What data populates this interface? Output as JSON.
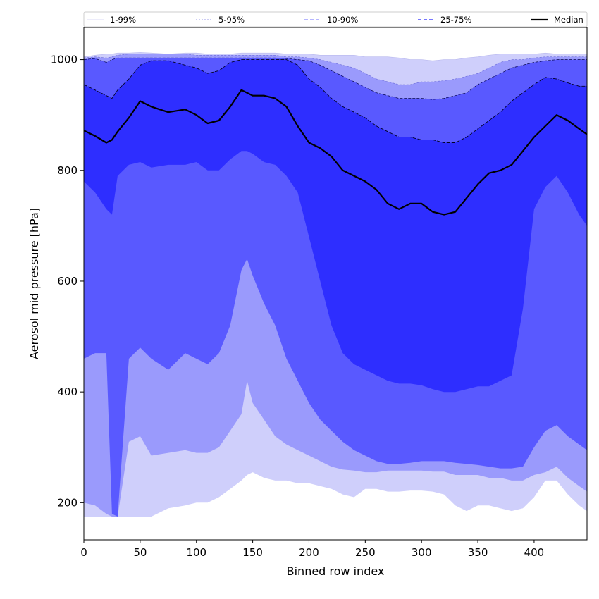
{
  "chart_data": {
    "type": "area",
    "xlabel": "Binned row index",
    "ylabel": "Aerosol mid pressure [hPa]",
    "xlim": [
      0,
      447
    ],
    "ylim": [
      133,
      1058
    ],
    "xticks": [
      0,
      50,
      100,
      150,
      200,
      250,
      300,
      350,
      400
    ],
    "yticks": [
      200,
      400,
      600,
      800,
      1000
    ],
    "legend_position": "top, spanning full width (above plot)",
    "grid": false,
    "colors": {
      "band_1_99": "#cfcffb",
      "band_5_95": "#9a9afc",
      "band_10_90": "#5959ff",
      "band_25_75": "#2e2eff",
      "median": "#000000"
    },
    "x": [
      0,
      10,
      20,
      25,
      30,
      40,
      50,
      60,
      75,
      90,
      100,
      110,
      120,
      130,
      140,
      145,
      150,
      160,
      170,
      180,
      190,
      200,
      210,
      220,
      230,
      240,
      250,
      260,
      270,
      280,
      290,
      300,
      310,
      320,
      330,
      340,
      350,
      360,
      370,
      380,
      390,
      400,
      410,
      420,
      430,
      440,
      447
    ],
    "series": [
      {
        "name": "1-99%",
        "lower": [
          175,
          175,
          175,
          175,
          175,
          175,
          175,
          175,
          190,
          195,
          200,
          200,
          210,
          225,
          240,
          250,
          255,
          245,
          240,
          240,
          235,
          235,
          230,
          225,
          215,
          210,
          225,
          225,
          220,
          220,
          222,
          222,
          220,
          215,
          195,
          185,
          195,
          195,
          190,
          185,
          190,
          210,
          240,
          240,
          215,
          195,
          185
        ],
        "upper": [
          1005,
          1008,
          1010,
          1010,
          1012,
          1012,
          1013,
          1012,
          1010,
          1012,
          1012,
          1010,
          1010,
          1010,
          1012,
          1012,
          1012,
          1012,
          1012,
          1010,
          1010,
          1010,
          1008,
          1008,
          1008,
          1008,
          1005,
          1005,
          1005,
          1003,
          1000,
          1000,
          998,
          1000,
          1000,
          1003,
          1005,
          1008,
          1010,
          1010,
          1010,
          1010,
          1012,
          1010,
          1010,
          1010,
          1010
        ]
      },
      {
        "name": "5-95%",
        "lower": [
          200,
          195,
          180,
          175,
          175,
          310,
          320,
          285,
          290,
          295,
          290,
          290,
          300,
          330,
          360,
          420,
          380,
          350,
          320,
          305,
          295,
          285,
          275,
          265,
          260,
          258,
          255,
          255,
          258,
          258,
          258,
          258,
          256,
          256,
          250,
          250,
          250,
          245,
          245,
          240,
          240,
          250,
          255,
          265,
          245,
          230,
          220
        ],
        "upper": [
          1003,
          1005,
          1003,
          1005,
          1008,
          1010,
          1010,
          1010,
          1010,
          1010,
          1008,
          1008,
          1008,
          1008,
          1008,
          1008,
          1008,
          1008,
          1008,
          1005,
          1005,
          1003,
          1000,
          995,
          990,
          985,
          975,
          965,
          960,
          955,
          955,
          960,
          960,
          962,
          965,
          970,
          975,
          985,
          995,
          1000,
          1000,
          1003,
          1005,
          1005,
          1005,
          1005,
          1005
        ]
      },
      {
        "name": "10-90%",
        "lower": [
          460,
          470,
          470,
          180,
          175,
          460,
          480,
          460,
          440,
          470,
          460,
          450,
          470,
          520,
          620,
          640,
          610,
          560,
          520,
          460,
          420,
          380,
          350,
          330,
          310,
          295,
          285,
          275,
          270,
          270,
          272,
          275,
          275,
          275,
          272,
          270,
          268,
          265,
          262,
          262,
          265,
          300,
          330,
          340,
          320,
          305,
          295
        ],
        "upper": [
          1000,
          1002,
          995,
          1000,
          1003,
          1003,
          1003,
          1003,
          1003,
          1003,
          1003,
          1003,
          1003,
          1003,
          1003,
          1003,
          1003,
          1003,
          1003,
          1002,
          1000,
          998,
          990,
          980,
          970,
          960,
          950,
          940,
          935,
          930,
          930,
          930,
          928,
          930,
          935,
          940,
          955,
          965,
          975,
          985,
          990,
          995,
          998,
          1000,
          1000,
          1000,
          1000
        ]
      },
      {
        "name": "25-75%",
        "lower": [
          780,
          760,
          730,
          720,
          790,
          810,
          815,
          805,
          810,
          810,
          815,
          800,
          800,
          820,
          835,
          835,
          830,
          815,
          810,
          790,
          760,
          680,
          600,
          520,
          470,
          450,
          440,
          430,
          420,
          415,
          415,
          412,
          405,
          400,
          400,
          405,
          410,
          410,
          420,
          430,
          550,
          730,
          770,
          790,
          760,
          720,
          700
        ],
        "upper": [
          955,
          945,
          935,
          930,
          945,
          965,
          990,
          998,
          998,
          990,
          985,
          975,
          980,
          995,
          1000,
          1000,
          1000,
          1000,
          1000,
          1000,
          990,
          965,
          950,
          930,
          915,
          905,
          895,
          880,
          870,
          860,
          860,
          855,
          855,
          850,
          850,
          860,
          875,
          890,
          905,
          925,
          940,
          955,
          968,
          965,
          958,
          952,
          952
        ]
      },
      {
        "name": "Median",
        "values": [
          872,
          862,
          850,
          855,
          870,
          895,
          925,
          915,
          905,
          910,
          900,
          885,
          890,
          915,
          945,
          940,
          935,
          935,
          930,
          915,
          880,
          850,
          840,
          825,
          800,
          790,
          780,
          765,
          740,
          730,
          740,
          740,
          725,
          720,
          725,
          750,
          775,
          795,
          800,
          810,
          835,
          860,
          880,
          900,
          890,
          875,
          865
        ]
      }
    ]
  }
}
